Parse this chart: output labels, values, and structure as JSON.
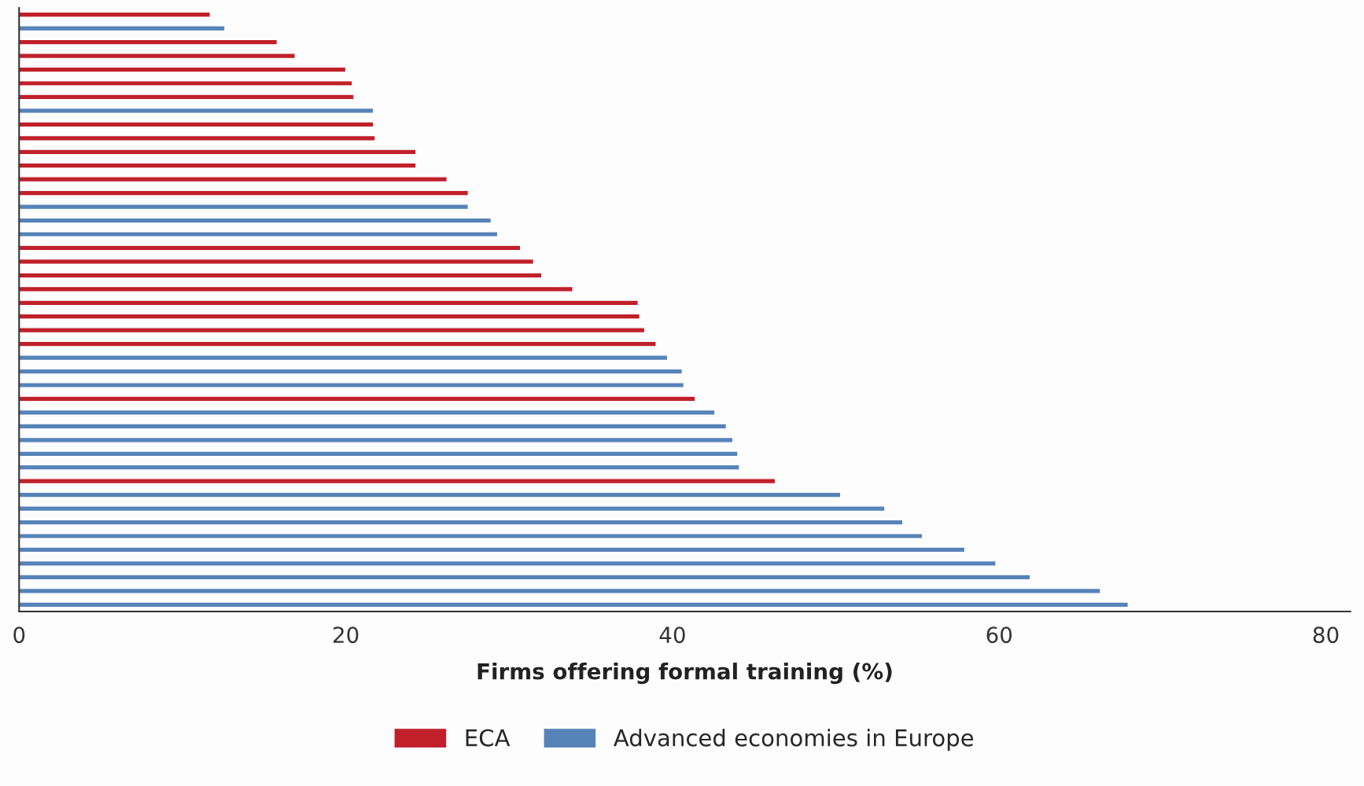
{
  "chart_data": {
    "type": "bar",
    "orientation": "horizontal",
    "xlabel": "Firms offering formal training (%)",
    "categories": [
      null,
      null,
      null,
      null,
      null,
      null,
      null,
      null,
      null,
      null,
      null,
      null,
      null,
      null,
      null,
      null,
      null,
      null,
      null,
      null,
      null,
      null,
      null,
      null,
      null,
      null,
      null,
      null,
      null,
      null,
      null,
      null,
      null,
      null,
      null,
      null,
      null,
      null,
      null,
      null,
      null,
      null,
      null,
      null
    ],
    "series": [
      {
        "name": "ECA",
        "color": "#c0202a",
        "values": [
          11.7,
          null,
          15.8,
          16.9,
          20.0,
          20.4,
          20.5,
          null,
          21.7,
          21.8,
          24.3,
          24.3,
          26.2,
          27.5,
          null,
          null,
          null,
          30.7,
          31.5,
          32.0,
          33.9,
          37.9,
          38.0,
          38.3,
          39.0,
          null,
          null,
          null,
          41.4,
          null,
          null,
          null,
          null,
          null,
          46.3,
          null,
          null,
          null,
          null,
          null,
          null,
          null,
          null,
          null
        ]
      },
      {
        "name": "Advanced economies in Europe",
        "color": "#5683b8",
        "values": [
          null,
          12.6,
          null,
          null,
          null,
          null,
          null,
          21.7,
          null,
          null,
          null,
          null,
          null,
          null,
          27.5,
          28.9,
          29.3,
          null,
          null,
          null,
          null,
          null,
          null,
          null,
          null,
          39.7,
          40.6,
          40.7,
          null,
          42.6,
          43.3,
          43.7,
          44.0,
          44.1,
          null,
          50.3,
          53.0,
          54.1,
          55.3,
          57.9,
          59.8,
          61.9,
          66.2,
          67.9
        ]
      }
    ],
    "xlim": [
      0,
      81.5
    ],
    "xticks": [
      0,
      20,
      40,
      60,
      80
    ],
    "grid": false,
    "legend": "bottom",
    "tick_labels": "x"
  }
}
